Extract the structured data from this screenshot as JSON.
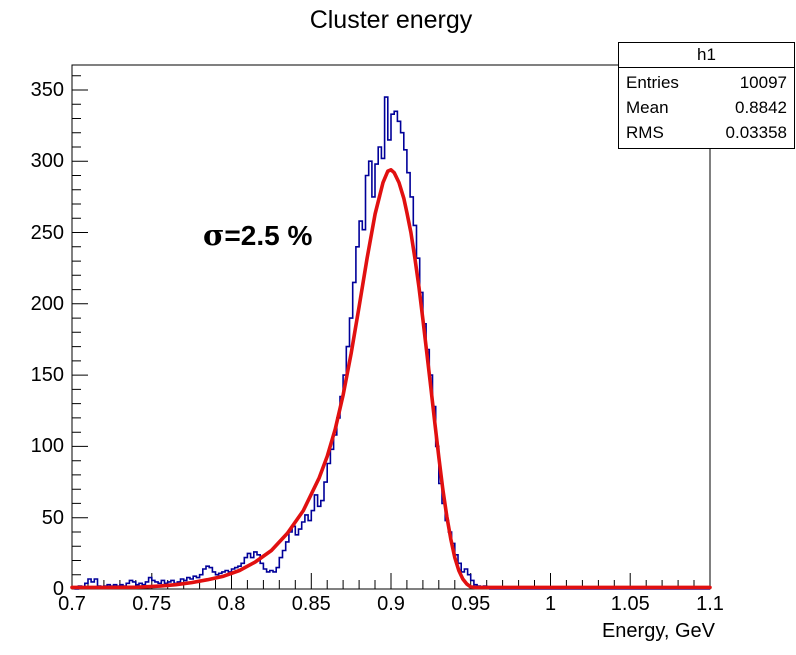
{
  "title": "Cluster energy",
  "stats_box": {
    "title": "h1",
    "rows": [
      {
        "label": "Entries",
        "value": "10097"
      },
      {
        "label": "Mean",
        "value": "0.8842"
      },
      {
        "label": "RMS",
        "value": "0.03358"
      }
    ]
  },
  "annotation": {
    "sigma_symbol": "σ",
    "text": "=2.5 %"
  },
  "colors": {
    "histogram_line": "#000099",
    "fit_curve": "#e11010",
    "axis": "#000000",
    "background": "#ffffff"
  },
  "chart_data": {
    "type": "bar",
    "subtype": "histogram-with-fit",
    "title": "Cluster energy",
    "xlabel": "Energy, GeV",
    "ylabel": "",
    "xlim": [
      0.7,
      1.1
    ],
    "ylim": [
      0,
      367.5
    ],
    "grid": false,
    "legend": "stats-box top-right: h1, Entries 10097, Mean 0.8842, RMS 0.03358",
    "x_major_tick_labels": [
      "0.7",
      "0.75",
      "0.8",
      "0.85",
      "0.9",
      "0.95",
      "1",
      "1.05",
      "1.1"
    ],
    "x_major_tick_values": [
      0.7,
      0.75,
      0.8,
      0.85,
      0.9,
      0.95,
      1.0,
      1.05,
      1.1
    ],
    "x_minor_step": 0.01,
    "y_major_tick_labels": [
      "0",
      "50",
      "100",
      "150",
      "200",
      "250",
      "300",
      "350"
    ],
    "y_major_tick_values": [
      0,
      50,
      100,
      150,
      200,
      250,
      300,
      350
    ],
    "y_minor_step": 10,
    "histogram": {
      "name": "h1",
      "bin_start": 0.7,
      "bin_width": 0.002,
      "counts": [
        1,
        0,
        2,
        1,
        4,
        7,
        5,
        7,
        2,
        1,
        2,
        3,
        2,
        3,
        2,
        3,
        2,
        4,
        6,
        5,
        3,
        4,
        3,
        5,
        8,
        6,
        5,
        4,
        6,
        4,
        5,
        6,
        4,
        5,
        7,
        6,
        8,
        7,
        9,
        8,
        10,
        14,
        16,
        15,
        12,
        10,
        11,
        12,
        13,
        12,
        14,
        15,
        16,
        18,
        22,
        25,
        22,
        26,
        24,
        18,
        14,
        12,
        13,
        12,
        15,
        22,
        27,
        33,
        40,
        44,
        38,
        42,
        47,
        52,
        48,
        55,
        66,
        58,
        62,
        75,
        88,
        98,
        108,
        120,
        135,
        150,
        170,
        190,
        215,
        240,
        258,
        252,
        290,
        300,
        275,
        298,
        310,
        302,
        345,
        315,
        333,
        335,
        328,
        320,
        308,
        292,
        275,
        255,
        232,
        208,
        186,
        168,
        150,
        128,
        100,
        74,
        60,
        48,
        40,
        32,
        24,
        18,
        12,
        14,
        10,
        6,
        3,
        2,
        1,
        2,
        1
      ],
      "zero_from": 0.962,
      "zero_to": 1.1,
      "max_bin": 345,
      "peak_position": 0.897
    },
    "fit_curve": {
      "description": "red fit curve, peak ~294 at 0.900, sigma 2.5%",
      "points": [
        [
          0.7,
          0
        ],
        [
          0.72,
          0.5
        ],
        [
          0.74,
          1.2
        ],
        [
          0.755,
          2
        ],
        [
          0.765,
          3
        ],
        [
          0.775,
          4.5
        ],
        [
          0.785,
          6.5
        ],
        [
          0.795,
          9
        ],
        [
          0.805,
          13
        ],
        [
          0.815,
          19
        ],
        [
          0.825,
          27
        ],
        [
          0.835,
          39
        ],
        [
          0.845,
          55
        ],
        [
          0.855,
          78
        ],
        [
          0.86,
          93
        ],
        [
          0.865,
          112
        ],
        [
          0.87,
          136
        ],
        [
          0.875,
          165
        ],
        [
          0.88,
          198
        ],
        [
          0.885,
          232
        ],
        [
          0.89,
          263
        ],
        [
          0.895,
          285
        ],
        [
          0.898,
          293
        ],
        [
          0.9,
          294
        ],
        [
          0.902,
          292
        ],
        [
          0.905,
          285
        ],
        [
          0.908,
          274
        ],
        [
          0.91,
          264
        ],
        [
          0.9125,
          250
        ],
        [
          0.915,
          232
        ],
        [
          0.9175,
          212
        ],
        [
          0.92,
          189
        ],
        [
          0.9225,
          165
        ],
        [
          0.925,
          141
        ],
        [
          0.9275,
          116
        ],
        [
          0.93,
          92
        ],
        [
          0.9325,
          70
        ],
        [
          0.935,
          51
        ],
        [
          0.9375,
          35
        ],
        [
          0.94,
          22
        ],
        [
          0.9425,
          13
        ],
        [
          0.945,
          7
        ],
        [
          0.9475,
          3.5
        ],
        [
          0.95,
          1.5
        ],
        [
          0.9525,
          0.6
        ],
        [
          0.955,
          0.2
        ],
        [
          0.96,
          0
        ],
        [
          1.1,
          0
        ]
      ]
    }
  }
}
